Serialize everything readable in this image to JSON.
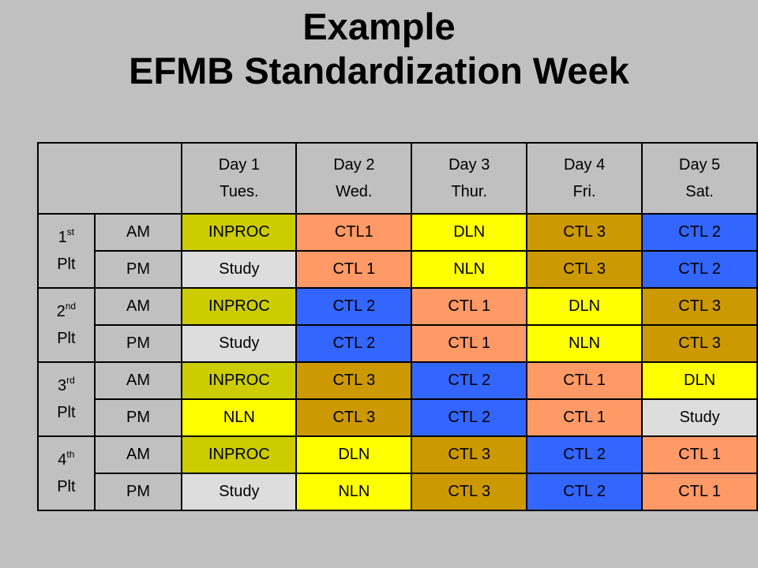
{
  "title": {
    "line1": "Example",
    "line2": "EFMB Standardization Week"
  },
  "colors": {
    "olive": "#cccc00",
    "salmon": "#ff9966",
    "yellow": "#ffff00",
    "gold": "#cc9900",
    "blue": "#3366ff",
    "gray": "#dddddd",
    "background": "#c0c0c0"
  },
  "days": [
    {
      "num": "Day 1",
      "name": "Tues."
    },
    {
      "num": "Day 2",
      "name": "Wed."
    },
    {
      "num": "Day 3",
      "name": "Thur."
    },
    {
      "num": "Day 4",
      "name": "Fri."
    },
    {
      "num": "Day 5",
      "name": "Sat."
    }
  ],
  "platoons": [
    {
      "num": "1",
      "ord": "st",
      "label": "Plt",
      "am": [
        "INPROC",
        "CTL1",
        "DLN",
        "CTL 3",
        "CTL 2"
      ],
      "pm": [
        "Study",
        "CTL 1",
        "NLN",
        "CTL 3",
        "CTL 2"
      ]
    },
    {
      "num": "2",
      "ord": "nd",
      "label": "Plt",
      "am": [
        "INPROC",
        "CTL 2",
        "CTL 1",
        "DLN",
        "CTL 3"
      ],
      "pm": [
        "Study",
        "CTL 2",
        "CTL 1",
        "NLN",
        "CTL 3"
      ]
    },
    {
      "num": "3",
      "ord": "rd",
      "label": "Plt",
      "am": [
        "INPROC",
        "CTL 3",
        "CTL 2",
        "CTL 1",
        "DLN"
      ],
      "pm": [
        "NLN",
        "CTL 3",
        "CTL 2",
        "CTL 1",
        "Study"
      ]
    },
    {
      "num": "4",
      "ord": "th",
      "label": "Plt",
      "am": [
        "INPROC",
        "DLN",
        "CTL 3",
        "CTL 2",
        "CTL 1"
      ],
      "pm": [
        "Study",
        "NLN",
        "CTL 3",
        "CTL 2",
        "CTL 1"
      ]
    }
  ],
  "shifts": {
    "am": "AM",
    "pm": "PM"
  }
}
